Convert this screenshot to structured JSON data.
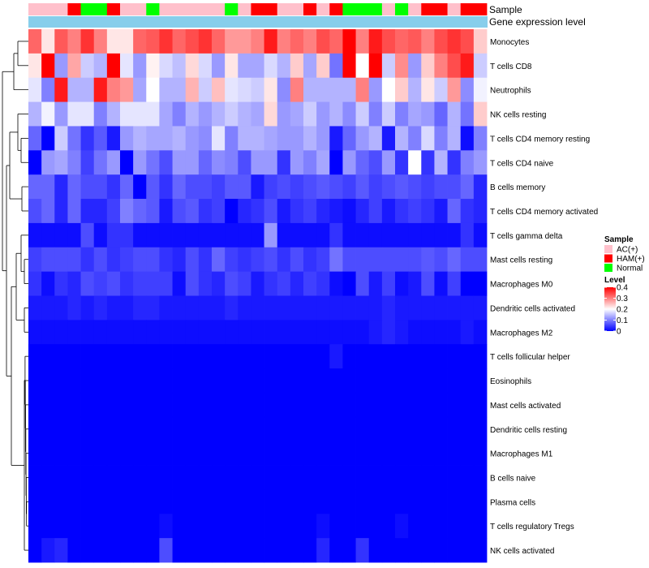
{
  "chart_data": {
    "type": "heatmap",
    "annotation_labels": [
      "Sample",
      "Gene expression level"
    ],
    "samples": [
      "AC(+)",
      "AC(+)",
      "AC(+)",
      "HAM(+)",
      "Normal",
      "Normal",
      "HAM(+)",
      "AC(+)",
      "AC(+)",
      "Normal",
      "AC(+)",
      "AC(+)",
      "AC(+)",
      "AC(+)",
      "AC(+)",
      "Normal",
      "AC(+)",
      "HAM(+)",
      "HAM(+)",
      "AC(+)",
      "AC(+)",
      "HAM(+)",
      "AC(+)",
      "HAM(+)",
      "Normal",
      "Normal",
      "Normal",
      "AC(+)",
      "Normal",
      "AC(+)",
      "HAM(+)",
      "HAM(+)",
      "AC(+)",
      "HAM(+)",
      "HAM(+)"
    ],
    "rows": [
      "Monocytes",
      "T cells CD8",
      "Neutrophils",
      "NK cells resting",
      "T cells CD4 memory resting",
      "T cells CD4 naive",
      "B cells memory",
      "T cells CD4 memory activated",
      "T cells gamma delta",
      "Mast cells resting",
      "Macrophages M0",
      "Dendritic cells activated",
      "Macrophages M2",
      "T cells follicular helper",
      "Eosinophils",
      "Mast cells activated",
      "Dendritic cells resting",
      "Macrophages M1",
      "B cells naive",
      "Plasma cells",
      "T cells regulatory  Tregs",
      "NK cells activated"
    ],
    "values": [
      [
        0.32,
        0.22,
        0.33,
        0.3,
        0.36,
        0.3,
        0.22,
        0.22,
        0.32,
        0.33,
        0.36,
        0.32,
        0.34,
        0.36,
        0.32,
        0.28,
        0.28,
        0.3,
        0.38,
        0.3,
        0.32,
        0.3,
        0.34,
        0.32,
        0.4,
        0.3,
        0.38,
        0.34,
        0.32,
        0.33,
        0.3,
        0.34,
        0.36,
        0.34,
        0.24
      ],
      [
        0.22,
        0.4,
        0.12,
        0.27,
        0.16,
        0.14,
        0.4,
        0.18,
        0.12,
        0.21,
        0.17,
        0.15,
        0.23,
        0.17,
        0.12,
        0.22,
        0.13,
        0.13,
        0.17,
        0.14,
        0.24,
        0.13,
        0.24,
        0.09,
        0.4,
        0.2,
        0.4,
        0.16,
        0.29,
        0.12,
        0.24,
        0.3,
        0.34,
        0.38,
        0.16
      ],
      [
        0.18,
        0.1,
        0.38,
        0.14,
        0.14,
        0.38,
        0.3,
        0.28,
        0.13,
        0.2,
        0.14,
        0.14,
        0.26,
        0.16,
        0.25,
        0.18,
        0.17,
        0.16,
        0.22,
        0.11,
        0.3,
        0.14,
        0.14,
        0.14,
        0.14,
        0.3,
        0.12,
        0.2,
        0.24,
        0.14,
        0.22,
        0.16,
        0.28,
        0.11,
        0.19
      ],
      [
        0.14,
        0.19,
        0.12,
        0.18,
        0.18,
        0.1,
        0.14,
        0.18,
        0.18,
        0.18,
        0.13,
        0.1,
        0.14,
        0.12,
        0.14,
        0.16,
        0.14,
        0.13,
        0.23,
        0.12,
        0.13,
        0.16,
        0.12,
        0.14,
        0.11,
        0.16,
        0.1,
        0.16,
        0.1,
        0.13,
        0.12,
        0.08,
        0.14,
        0.09,
        0.24
      ],
      [
        0.08,
        0.0,
        0.16,
        0.09,
        0.04,
        0.07,
        0.02,
        0.12,
        0.14,
        0.13,
        0.13,
        0.14,
        0.12,
        0.11,
        0.18,
        0.1,
        0.14,
        0.14,
        0.13,
        0.12,
        0.12,
        0.14,
        0.12,
        0.02,
        0.08,
        0.12,
        0.14,
        0.02,
        0.14,
        0.1,
        0.17,
        0.1,
        0.14,
        0.01,
        0.1
      ],
      [
        0.0,
        0.12,
        0.13,
        0.1,
        0.05,
        0.09,
        0.12,
        0.0,
        0.12,
        0.09,
        0.06,
        0.12,
        0.12,
        0.08,
        0.11,
        0.1,
        0.06,
        0.12,
        0.12,
        0.04,
        0.12,
        0.1,
        0.13,
        0.0,
        0.12,
        0.08,
        0.06,
        0.12,
        0.04,
        0.2,
        0.04,
        0.14,
        0.04,
        0.1,
        0.12
      ],
      [
        0.08,
        0.08,
        0.03,
        0.08,
        0.06,
        0.06,
        0.04,
        0.08,
        0.0,
        0.07,
        0.04,
        0.08,
        0.06,
        0.06,
        0.05,
        0.07,
        0.07,
        0.02,
        0.05,
        0.06,
        0.05,
        0.06,
        0.07,
        0.06,
        0.05,
        0.07,
        0.05,
        0.06,
        0.07,
        0.06,
        0.05,
        0.06,
        0.06,
        0.08,
        0.03
      ],
      [
        0.06,
        0.08,
        0.03,
        0.08,
        0.03,
        0.03,
        0.05,
        0.1,
        0.08,
        0.07,
        0.02,
        0.06,
        0.07,
        0.04,
        0.05,
        0.0,
        0.03,
        0.04,
        0.06,
        0.02,
        0.04,
        0.05,
        0.03,
        0.02,
        0.01,
        0.03,
        0.05,
        0.02,
        0.04,
        0.05,
        0.04,
        0.02,
        0.08,
        0.04,
        0.03
      ],
      [
        0.01,
        0.01,
        0.01,
        0.01,
        0.06,
        0.01,
        0.04,
        0.04,
        0.01,
        0.01,
        0.01,
        0.01,
        0.01,
        0.01,
        0.01,
        0.01,
        0.01,
        0.01,
        0.12,
        0.01,
        0.01,
        0.01,
        0.01,
        0.04,
        0.01,
        0.01,
        0.01,
        0.01,
        0.01,
        0.01,
        0.01,
        0.01,
        0.01,
        0.04,
        0.01
      ],
      [
        0.05,
        0.06,
        0.06,
        0.06,
        0.04,
        0.06,
        0.04,
        0.05,
        0.06,
        0.06,
        0.04,
        0.03,
        0.06,
        0.04,
        0.08,
        0.05,
        0.04,
        0.05,
        0.06,
        0.04,
        0.06,
        0.04,
        0.05,
        0.09,
        0.06,
        0.06,
        0.06,
        0.06,
        0.06,
        0.06,
        0.07,
        0.06,
        0.08,
        0.06,
        0.06
      ],
      [
        0.04,
        0.01,
        0.04,
        0.03,
        0.06,
        0.05,
        0.06,
        0.04,
        0.05,
        0.05,
        0.05,
        0.01,
        0.06,
        0.04,
        0.03,
        0.06,
        0.05,
        0.02,
        0.04,
        0.05,
        0.03,
        0.05,
        0.04,
        0.01,
        0.0,
        0.06,
        0.02,
        0.05,
        0.01,
        0.02,
        0.06,
        0.01,
        0.05,
        0.0,
        0.0
      ],
      [
        0.02,
        0.02,
        0.02,
        0.03,
        0.02,
        0.03,
        0.02,
        0.02,
        0.03,
        0.03,
        0.02,
        0.02,
        0.02,
        0.02,
        0.02,
        0.03,
        0.02,
        0.02,
        0.02,
        0.02,
        0.02,
        0.02,
        0.02,
        0.02,
        0.02,
        0.02,
        0.02,
        0.03,
        0.02,
        0.02,
        0.02,
        0.02,
        0.02,
        0.02,
        0.02
      ],
      [
        0.01,
        0.01,
        0.01,
        0.01,
        0.01,
        0.01,
        0.01,
        0.01,
        0.01,
        0.01,
        0.01,
        0.01,
        0.01,
        0.01,
        0.01,
        0.01,
        0.01,
        0.01,
        0.01,
        0.01,
        0.01,
        0.01,
        0.01,
        0.01,
        0.01,
        0.01,
        0.02,
        0.03,
        0.02,
        0.01,
        0.01,
        0.01,
        0.01,
        0.02,
        0.01
      ],
      [
        0.0,
        0.0,
        0.0,
        0.0,
        0.0,
        0.0,
        0.0,
        0.0,
        0.0,
        0.0,
        0.0,
        0.0,
        0.0,
        0.0,
        0.0,
        0.0,
        0.0,
        0.0,
        0.0,
        0.0,
        0.0,
        0.0,
        0.0,
        0.02,
        0.0,
        0.0,
        0.0,
        0.0,
        0.0,
        0.0,
        0.0,
        0.0,
        0.0,
        0.0,
        0.0
      ],
      [
        0.0,
        0.0,
        0.0,
        0.0,
        0.0,
        0.0,
        0.0,
        0.0,
        0.0,
        0.0,
        0.0,
        0.0,
        0.0,
        0.0,
        0.0,
        0.0,
        0.0,
        0.0,
        0.0,
        0.0,
        0.0,
        0.0,
        0.0,
        0.0,
        0.0,
        0.0,
        0.0,
        0.0,
        0.0,
        0.0,
        0.0,
        0.0,
        0.0,
        0.0,
        0.0
      ],
      [
        0.0,
        0.0,
        0.0,
        0.0,
        0.0,
        0.0,
        0.0,
        0.0,
        0.0,
        0.0,
        0.0,
        0.0,
        0.0,
        0.0,
        0.0,
        0.0,
        0.0,
        0.0,
        0.0,
        0.0,
        0.0,
        0.0,
        0.0,
        0.0,
        0.0,
        0.0,
        0.0,
        0.0,
        0.0,
        0.0,
        0.0,
        0.0,
        0.0,
        0.0,
        0.0
      ],
      [
        0.0,
        0.0,
        0.0,
        0.0,
        0.0,
        0.0,
        0.0,
        0.0,
        0.0,
        0.0,
        0.0,
        0.0,
        0.0,
        0.0,
        0.0,
        0.0,
        0.0,
        0.0,
        0.0,
        0.0,
        0.0,
        0.0,
        0.0,
        0.0,
        0.0,
        0.0,
        0.0,
        0.0,
        0.0,
        0.0,
        0.0,
        0.0,
        0.0,
        0.0,
        0.0
      ],
      [
        0.0,
        0.0,
        0.0,
        0.0,
        0.0,
        0.0,
        0.0,
        0.0,
        0.0,
        0.0,
        0.0,
        0.0,
        0.0,
        0.0,
        0.0,
        0.0,
        0.0,
        0.0,
        0.0,
        0.0,
        0.0,
        0.0,
        0.0,
        0.0,
        0.0,
        0.0,
        0.0,
        0.0,
        0.0,
        0.0,
        0.0,
        0.0,
        0.0,
        0.0,
        0.0
      ],
      [
        0.0,
        0.0,
        0.0,
        0.0,
        0.0,
        0.0,
        0.0,
        0.0,
        0.0,
        0.0,
        0.0,
        0.0,
        0.0,
        0.0,
        0.0,
        0.0,
        0.0,
        0.0,
        0.0,
        0.0,
        0.0,
        0.0,
        0.0,
        0.0,
        0.0,
        0.0,
        0.0,
        0.0,
        0.0,
        0.0,
        0.0,
        0.0,
        0.0,
        0.0,
        0.0
      ],
      [
        0.0,
        0.0,
        0.0,
        0.0,
        0.0,
        0.0,
        0.0,
        0.0,
        0.0,
        0.0,
        0.0,
        0.0,
        0.0,
        0.0,
        0.0,
        0.0,
        0.0,
        0.0,
        0.0,
        0.0,
        0.0,
        0.0,
        0.0,
        0.0,
        0.0,
        0.0,
        0.0,
        0.0,
        0.0,
        0.0,
        0.0,
        0.0,
        0.0,
        0.0,
        0.0
      ],
      [
        0.0,
        0.0,
        0.0,
        0.0,
        0.0,
        0.0,
        0.0,
        0.0,
        0.0,
        0.0,
        0.01,
        0.0,
        0.0,
        0.0,
        0.0,
        0.0,
        0.0,
        0.0,
        0.0,
        0.0,
        0.0,
        0.0,
        0.01,
        0.0,
        0.0,
        0.0,
        0.0,
        0.0,
        0.01,
        0.0,
        0.0,
        0.0,
        0.0,
        0.0,
        0.0
      ],
      [
        0.0,
        0.02,
        0.03,
        0.0,
        0.0,
        0.0,
        0.0,
        0.0,
        0.0,
        0.0,
        0.06,
        0.0,
        0.0,
        0.0,
        0.0,
        0.0,
        0.0,
        0.0,
        0.0,
        0.0,
        0.0,
        0.0,
        0.03,
        0.0,
        0.0,
        0.04,
        0.0,
        0.0,
        0.0,
        0.0,
        0.0,
        0.0,
        0.0,
        0.0,
        0.0
      ]
    ],
    "legend": {
      "sample_title": "Sample",
      "sample_groups": [
        {
          "label": "AC(+)",
          "color": "#ffc0cb"
        },
        {
          "label": "HAM(+)",
          "color": "#ff0000"
        },
        {
          "label": "Normal",
          "color": "#00ff00"
        }
      ],
      "level_title": "Level",
      "level_ticks": [
        "0.4",
        "0.3",
        "0.2",
        "0.1",
        "0"
      ],
      "level_tick_values": [
        0.4,
        0.3,
        0.2,
        0.1,
        0
      ],
      "level_range": [
        0,
        0.4
      ]
    },
    "colors": {
      "low": "#0000ff",
      "mid": "#ffffff",
      "high": "#ff0000",
      "expression_bar": "#87ceeb"
    }
  }
}
